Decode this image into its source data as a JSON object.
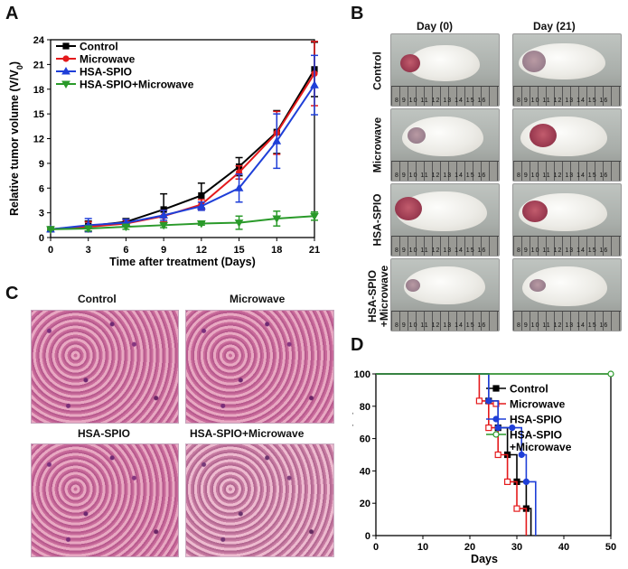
{
  "panels": {
    "a": "A",
    "b": "B",
    "c": "C",
    "d": "D"
  },
  "chart_data": [
    {
      "id": "A",
      "type": "line",
      "title": "",
      "xlabel": "Time after treatment (Days)",
      "ylabel": "Relative tumor volume (V/V0)",
      "ylabel_main": "Relative tumor volume (V/V",
      "ylabel_sub": "0",
      "ylabel_close": ")",
      "x": [
        0,
        3,
        6,
        9,
        12,
        15,
        18,
        21
      ],
      "xticks": [
        "0",
        "3",
        "6",
        "9",
        "12",
        "15",
        "18",
        "21"
      ],
      "yticks": [
        "0",
        "3",
        "6",
        "9",
        "12",
        "15",
        "18",
        "21",
        "24"
      ],
      "xlim": [
        0,
        21
      ],
      "ylim": [
        0,
        24
      ],
      "legend_position": "top-left",
      "series": [
        {
          "name": "Control",
          "color": "#000000",
          "marker": "square",
          "values": [
            1.0,
            1.4,
            1.9,
            3.4,
            5.1,
            8.6,
            12.8,
            20.4
          ],
          "errors": [
            0.2,
            0.6,
            0.4,
            1.9,
            1.5,
            1.1,
            2.6,
            3.3
          ]
        },
        {
          "name": "Microwave",
          "color": "#e41a1c",
          "marker": "circle",
          "values": [
            1.0,
            1.3,
            1.7,
            2.6,
            4.0,
            7.9,
            12.7,
            19.9
          ],
          "errors": [
            0.2,
            0.6,
            0.4,
            0.7,
            0.6,
            0.8,
            2.6,
            3.9
          ]
        },
        {
          "name": "HSA-SPIO",
          "color": "#1f3fd8",
          "marker": "triangle-up",
          "values": [
            1.0,
            1.5,
            1.8,
            2.7,
            3.8,
            6.0,
            11.7,
            18.5
          ],
          "errors": [
            0.2,
            0.8,
            0.4,
            0.6,
            0.5,
            1.7,
            3.3,
            3.6
          ]
        },
        {
          "name": "HSA-SPIO+Microwave",
          "color": "#2a9a2a",
          "marker": "triangle-down",
          "values": [
            1.0,
            1.1,
            1.3,
            1.5,
            1.7,
            1.8,
            2.3,
            2.6
          ],
          "errors": [
            0.1,
            0.3,
            0.3,
            0.3,
            0.2,
            0.8,
            0.9,
            0.5
          ]
        }
      ]
    },
    {
      "id": "D",
      "type": "line",
      "title": "",
      "xlabel": "Days",
      "ylabel": "Survival rate (%)",
      "xticks": [
        "0",
        "10",
        "20",
        "30",
        "40",
        "50"
      ],
      "yticks": [
        "0",
        "20",
        "40",
        "60",
        "80",
        "100"
      ],
      "xlim": [
        0,
        50
      ],
      "ylim": [
        0,
        100
      ],
      "legend_position": "top-right",
      "series": [
        {
          "name": "Control",
          "color": "#000000",
          "marker": "square",
          "filled": true,
          "x": [
            0,
            24,
            26,
            28,
            30,
            32,
            33
          ],
          "y": [
            100,
            83.3,
            66.7,
            50,
            33.3,
            16.7,
            0
          ]
        },
        {
          "name": "Microwave",
          "color": "#e41a1c",
          "marker": "square",
          "filled": false,
          "x": [
            0,
            22,
            24,
            26,
            28,
            30,
            32
          ],
          "y": [
            100,
            83.3,
            66.7,
            50,
            33.3,
            16.7,
            0
          ]
        },
        {
          "name": "HSA-SPIO",
          "color": "#1f3fd8",
          "marker": "circle",
          "filled": true,
          "x": [
            0,
            24,
            26,
            29,
            31,
            32,
            34
          ],
          "y": [
            100,
            83.3,
            66.7,
            66.7,
            50,
            33.3,
            0
          ]
        },
        {
          "name": "HSA-SPIO\n+Microwave",
          "name_line1": "HSA-SPIO",
          "name_line2": "+Microwave",
          "color": "#2a9a2a",
          "marker": "circle",
          "filled": false,
          "x": [
            0,
            50
          ],
          "y": [
            100,
            100
          ]
        }
      ]
    }
  ],
  "photos": {
    "columns": [
      "Day (0)",
      "Day (21)"
    ],
    "rows": [
      {
        "label": "Control"
      },
      {
        "label": "Microwave"
      },
      {
        "label": "HSA-SPIO"
      },
      {
        "label_line1": "HSA-SPIO",
        "label_line2": "+Microwave"
      }
    ],
    "ruler_text": "8  9  10  11  12  13  14  15  16"
  },
  "histology": {
    "titles": [
      "Control",
      "Microwave",
      "HSA-SPIO",
      "HSA-SPIO+Microwave"
    ]
  }
}
